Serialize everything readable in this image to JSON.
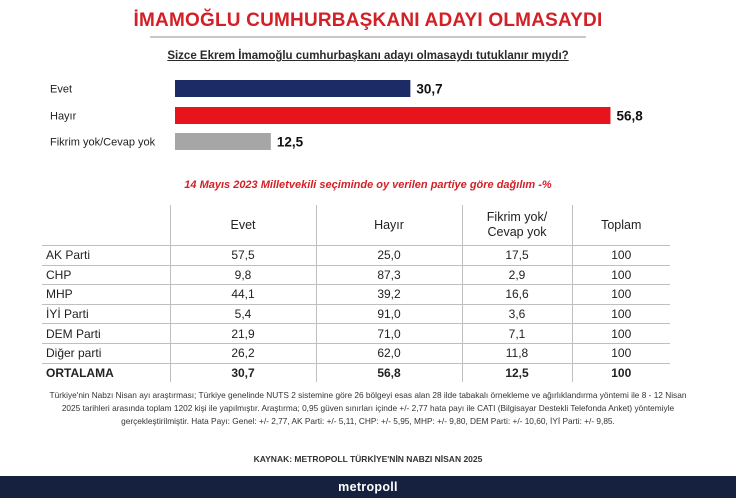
{
  "title": "İMAMOĞLU CUMHURBAŞKANI ADAYI OLMASAYDI",
  "question": "Sizce Ekrem İmamoğlu cumhurbaşkanı adayı olmasaydı tutuklanır mıydı?",
  "chart_data": {
    "type": "bar",
    "orientation": "horizontal",
    "categories": [
      "Evet",
      "Hayır",
      "Fikrim yok/Cevap yok"
    ],
    "values": [
      30.7,
      56.8,
      12.5
    ],
    "value_labels": [
      "30,7",
      "56,8",
      "12,5"
    ],
    "colors": [
      "#1c2a66",
      "#e8141b",
      "#a6a6a6"
    ],
    "title": "Sizce Ekrem İmamoğlu cumhurbaşkanı adayı olmasaydı tutuklanır mıydı?",
    "xlim": [
      0,
      60
    ],
    "grid": false,
    "legend": "none"
  },
  "table": {
    "subtitle": "14 Mayıs 2023 Milletvekili seçiminde oy verilen partiye göre dağılım -%",
    "headers": [
      "",
      "Evet",
      "Hayır",
      "Fikrim yok/ Cevap yok",
      "Toplam"
    ],
    "rows": [
      {
        "party": "AK Parti",
        "evet": "57,5",
        "hayir": "25,0",
        "fikrim_yok": "17,5",
        "toplam": "100"
      },
      {
        "party": "CHP",
        "evet": "9,8",
        "hayir": "87,3",
        "fikrim_yok": "2,9",
        "toplam": "100"
      },
      {
        "party": "MHP",
        "evet": "44,1",
        "hayir": "39,2",
        "fikrim_yok": "16,6",
        "toplam": "100"
      },
      {
        "party": "İYİ Parti",
        "evet": "5,4",
        "hayir": "91,0",
        "fikrim_yok": "3,6",
        "toplam": "100"
      },
      {
        "party": "DEM Parti",
        "evet": "21,9",
        "hayir": "71,0",
        "fikrim_yok": "7,1",
        "toplam": "100"
      },
      {
        "party": "Diğer parti",
        "evet": "26,2",
        "hayir": "62,0",
        "fikrim_yok": "11,8",
        "toplam": "100"
      },
      {
        "party": "ORTALAMA",
        "evet": "30,7",
        "hayir": "56,8",
        "fikrim_yok": "12,5",
        "toplam": "100"
      }
    ]
  },
  "note": "Türkiye'nin Nabzı Nisan ayı araştırması; Türkiye genelinde NUTS 2 sistemine göre 26 bölgeyi esas alan 28 ilde tabakalı örnekleme ve ağırlıklandırma yöntemi ile 8 - 12 Nisan 2025 tarihleri arasında toplam 1202 kişi ile yapılmıştır. Araştırma; 0,95 güven sınırları içinde +/- 2,77 hata payı ile CATI (Bilgisayar Destekli Telefonda Anket) yöntemiyle gerçekleştirilmiştir. Hata Payı: Genel: +/- 2,77, AK Parti: +/- 5,11, CHP: +/- 5,95, MHP: +/- 9,80, DEM Parti: +/- 10,60, İYİ Parti: +/- 9,85.",
  "source": "KAYNAK: METROPOLL TÜRKİYE'NİN NABZI NİSAN 2025",
  "footer": "metropoll"
}
